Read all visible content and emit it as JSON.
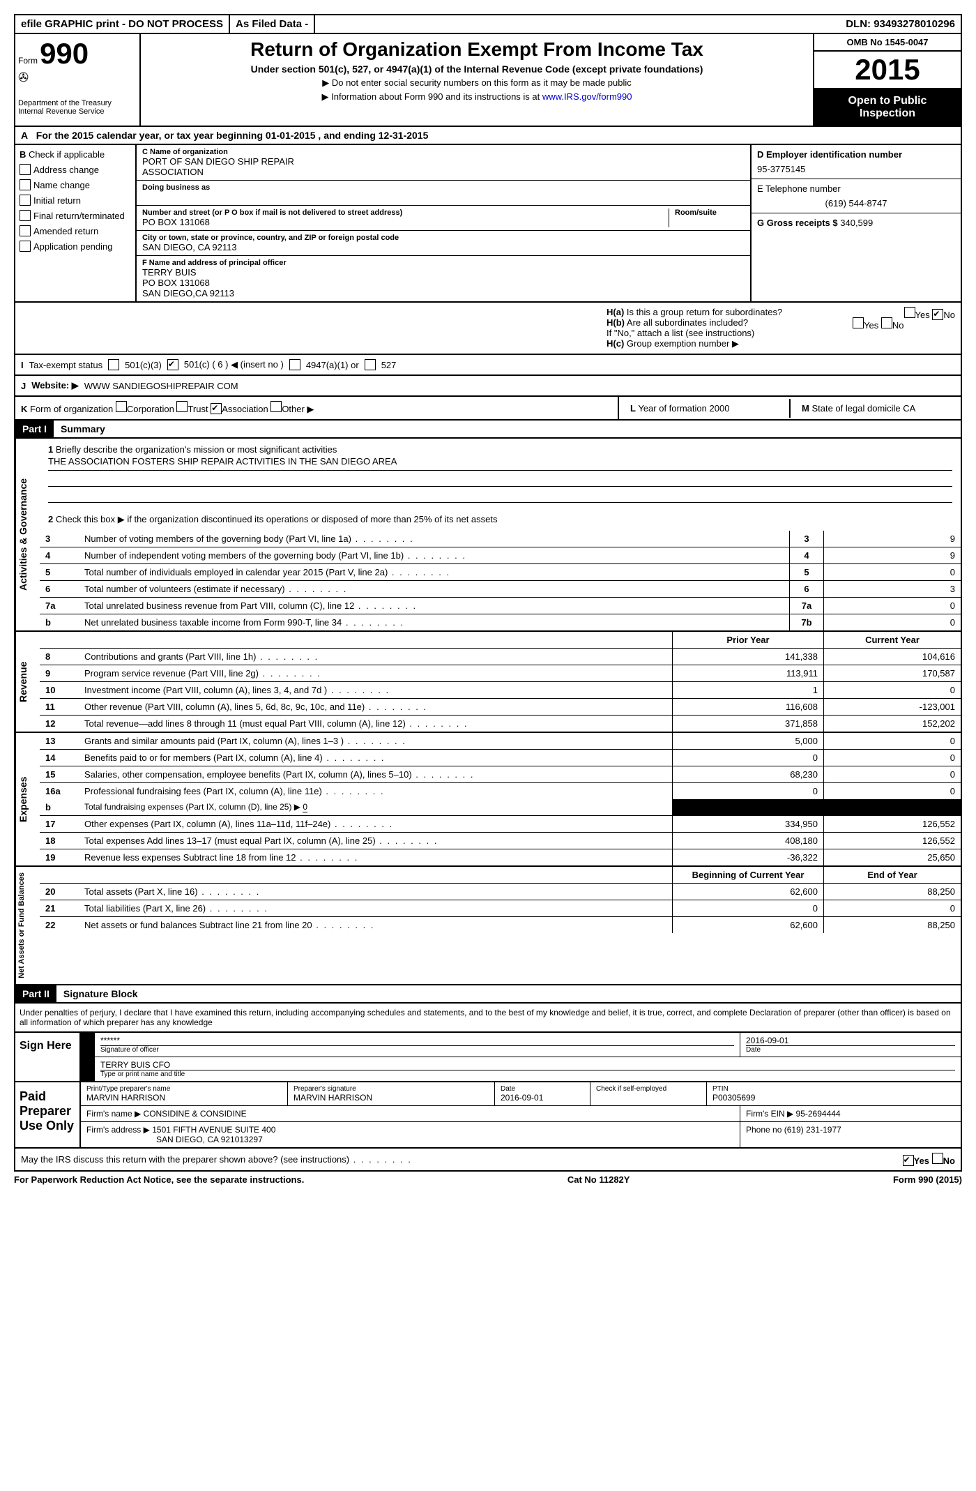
{
  "top": {
    "efile": "efile GRAPHIC print - DO NOT PROCESS",
    "asfiled": "As Filed Data -",
    "dln_label": "DLN:",
    "dln": "93493278010296"
  },
  "header": {
    "form_label": "Form",
    "form_num": "990",
    "dept1": "Department of the Treasury",
    "dept2": "Internal Revenue Service",
    "title": "Return of Organization Exempt From Income Tax",
    "subtitle": "Under section 501(c), 527, or 4947(a)(1) of the Internal Revenue Code (except private foundations)",
    "inst1": "▶ Do not enter social security numbers on this form as it may be made public",
    "inst2": "▶ Information about Form 990 and its instructions is at",
    "inst_link": "www.IRS.gov/form990",
    "omb": "OMB No 1545-0047",
    "year": "2015",
    "open": "Open to Public Inspection"
  },
  "section_a": {
    "label_a": "A",
    "text": "For the 2015 calendar year, or tax year beginning 01-01-2015     , and ending 12-31-2015"
  },
  "col_b": {
    "label": "B",
    "check_label": "Check if applicable",
    "items": [
      "Address change",
      "Name change",
      "Initial return",
      "Final return/terminated",
      "Amended return",
      "Application pending"
    ]
  },
  "col_c": {
    "c_label": "C Name of organization",
    "org1": "PORT OF SAN DIEGO SHIP REPAIR",
    "org2": "ASSOCIATION",
    "dba_label": "Doing business as",
    "addr_label": "Number and street (or P O  box if mail is not delivered to street address)",
    "room_label": "Room/suite",
    "addr": "PO BOX 131068",
    "city_label": "City or town, state or province, country, and ZIP or foreign postal code",
    "city": "SAN DIEGO, CA  92113",
    "f_label": "F   Name and address of principal officer",
    "officer1": "TERRY BUIS",
    "officer2": "PO BOX 131068",
    "officer3": "SAN DIEGO,CA  92113"
  },
  "col_d": {
    "d_label": "D Employer identification number",
    "ein": "95-3775145",
    "e_label": "E Telephone number",
    "phone": "(619) 544-8747",
    "g_label": "G Gross receipts $",
    "gross": "340,599"
  },
  "col_h": {
    "ha_label": "H(a)",
    "ha_text": "Is this a group return for subordinates?",
    "hb_label": "H(b)",
    "hb_text": "Are all subordinates included?",
    "h_note": "If \"No,\" attach a list  (see instructions)",
    "hc_label": "H(c)",
    "hc_text": "Group exemption number ▶",
    "yes": "Yes",
    "no": "No"
  },
  "row_i": {
    "label": "I",
    "text": "Tax-exempt status",
    "opts": [
      "501(c)(3)",
      "501(c) ( 6 ) ◀ (insert no )",
      "4947(a)(1) or",
      "527"
    ]
  },
  "row_j": {
    "label": "J",
    "text": "Website: ▶",
    "url": "WWW SANDIEGOSHIPREPAIR COM"
  },
  "row_k": {
    "label": "K",
    "text": "Form of organization",
    "opts": [
      "Corporation",
      "Trust",
      "Association",
      "Other ▶"
    ],
    "l_label": "L",
    "l_text": "Year of formation",
    "l_val": "2000",
    "m_label": "M",
    "m_text": "State of legal domicile",
    "m_val": "CA"
  },
  "part1": {
    "header": "Part I",
    "title": "Summary"
  },
  "governance": {
    "label": "Activities & Governance",
    "line1_num": "1",
    "line1": "Briefly describe the organization's mission or most significant activities",
    "mission": "THE ASSOCIATION FOSTERS SHIP REPAIR ACTIVITIES IN THE SAN DIEGO AREA",
    "line2_num": "2",
    "line2": "Check this box ▶    if the organization discontinued its operations or disposed of more than 25% of its net assets",
    "lines": [
      {
        "num": "3",
        "text": "Number of voting members of the governing body (Part VI, line 1a)",
        "box": "3",
        "val": "9"
      },
      {
        "num": "4",
        "text": "Number of independent voting members of the governing body (Part VI, line 1b)",
        "box": "4",
        "val": "9"
      },
      {
        "num": "5",
        "text": "Total number of individuals employed in calendar year 2015 (Part V, line 2a)",
        "box": "5",
        "val": "0"
      },
      {
        "num": "6",
        "text": "Total number of volunteers (estimate if necessary)",
        "box": "6",
        "val": "3"
      },
      {
        "num": "7a",
        "text": "Total unrelated business revenue from Part VIII, column (C), line 12",
        "box": "7a",
        "val": "0"
      },
      {
        "num": "b",
        "text": "Net unrelated business taxable income from Form 990-T, line 34",
        "box": "7b",
        "val": "0"
      }
    ]
  },
  "revenue": {
    "label": "Revenue",
    "prior_header": "Prior Year",
    "current_header": "Current Year",
    "lines": [
      {
        "num": "8",
        "text": "Contributions and grants (Part VIII, line 1h)",
        "prior": "141,338",
        "curr": "104,616"
      },
      {
        "num": "9",
        "text": "Program service revenue (Part VIII, line 2g)",
        "prior": "113,911",
        "curr": "170,587"
      },
      {
        "num": "10",
        "text": "Investment income (Part VIII, column (A), lines 3, 4, and 7d )",
        "prior": "1",
        "curr": "0"
      },
      {
        "num": "11",
        "text": "Other revenue (Part VIII, column (A), lines 5, 6d, 8c, 9c, 10c, and 11e)",
        "prior": "116,608",
        "curr": "-123,001"
      },
      {
        "num": "12",
        "text": "Total revenue—add lines 8 through 11 (must equal Part VIII, column (A), line 12)",
        "prior": "371,858",
        "curr": "152,202"
      }
    ]
  },
  "expenses": {
    "label": "Expenses",
    "lines": [
      {
        "num": "13",
        "text": "Grants and similar amounts paid (Part IX, column (A), lines 1–3 )",
        "prior": "5,000",
        "curr": "0"
      },
      {
        "num": "14",
        "text": "Benefits paid to or for members (Part IX, column (A), line 4)",
        "prior": "0",
        "curr": "0"
      },
      {
        "num": "15",
        "text": "Salaries, other compensation, employee benefits (Part IX, column (A), lines 5–10)",
        "prior": "68,230",
        "curr": "0"
      },
      {
        "num": "16a",
        "text": "Professional fundraising fees (Part IX, column (A), line 11e)",
        "prior": "0",
        "curr": "0"
      }
    ],
    "line_b_num": "b",
    "line_b": "Total fundraising expenses (Part IX, column (D), line 25) ▶",
    "line_b_val": "0",
    "lines2": [
      {
        "num": "17",
        "text": "Other expenses (Part IX, column (A), lines 11a–11d, 11f–24e)",
        "prior": "334,950",
        "curr": "126,552"
      },
      {
        "num": "18",
        "text": "Total expenses  Add lines 13–17 (must equal Part IX, column (A), line 25)",
        "prior": "408,180",
        "curr": "126,552"
      },
      {
        "num": "19",
        "text": "Revenue less expenses  Subtract line 18 from line 12",
        "prior": "-36,322",
        "curr": "25,650"
      }
    ]
  },
  "netassets": {
    "label": "Net Assets or Fund Balances",
    "begin_header": "Beginning of Current Year",
    "end_header": "End of Year",
    "lines": [
      {
        "num": "20",
        "text": "Total assets (Part X, line 16)",
        "prior": "62,600",
        "curr": "88,250"
      },
      {
        "num": "21",
        "text": "Total liabilities (Part X, line 26)",
        "prior": "0",
        "curr": "0"
      },
      {
        "num": "22",
        "text": "Net assets or fund balances  Subtract line 21 from line 20",
        "prior": "62,600",
        "curr": "88,250"
      }
    ]
  },
  "part2": {
    "header": "Part II",
    "title": "Signature Block",
    "perjury": "Under penalties of perjury, I declare that I have examined this return, including accompanying schedules and statements, and to the best of my knowledge and belief, it is true, correct, and complete  Declaration of preparer (other than officer) is based on all information of which preparer has any knowledge"
  },
  "sign": {
    "label": "Sign Here",
    "stars": "******",
    "sig_label": "Signature of officer",
    "date_label": "Date",
    "date": "2016-09-01",
    "name": "TERRY BUIS CFO",
    "name_label": "Type or print name and title"
  },
  "preparer": {
    "label": "Paid Preparer Use Only",
    "print_label": "Print/Type preparer's name",
    "print_name": "MARVIN HARRISON",
    "sig_label": "Preparer's signature",
    "sig_name": "MARVIN HARRISON",
    "date_label": "Date",
    "date": "2016-09-01",
    "check_label": "Check     if self-employed",
    "ptin_label": "PTIN",
    "ptin": "P00305699",
    "firm_name_label": "Firm's name     ▶",
    "firm_name": "CONSIDINE & CONSIDINE",
    "firm_ein_label": "Firm's EIN ▶",
    "firm_ein": "95-2694444",
    "firm_addr_label": "Firm's address ▶",
    "firm_addr1": "1501 FIFTH AVENUE SUITE 400",
    "firm_addr2": "SAN DIEGO, CA  921013297",
    "phone_label": "Phone no",
    "phone": "(619) 231-1977"
  },
  "discuss": {
    "text": "May the IRS discuss this return with the preparer shown above? (see instructions)",
    "yes": "Yes",
    "no": "No"
  },
  "footer": {
    "left": "For Paperwork Reduction Act Notice, see the separate instructions.",
    "center": "Cat No  11282Y",
    "right": "Form",
    "form": "990",
    "year": "(2015)"
  }
}
